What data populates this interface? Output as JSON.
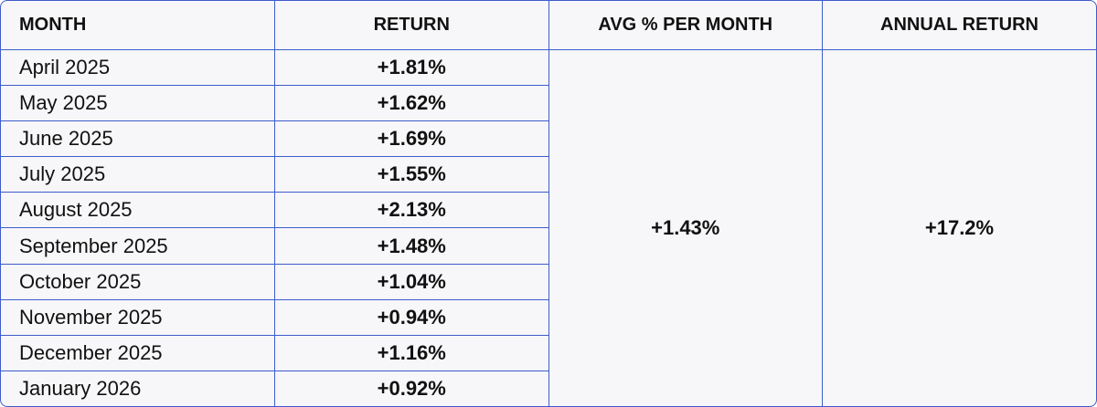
{
  "table": {
    "header": [
      "MONTH",
      "RETURN",
      "AVG % PER MONTH",
      "ANNUAL RETURN"
    ],
    "rows": [
      [
        "April 2025",
        "+1.81%"
      ],
      [
        "May 2025",
        "+1.62%"
      ],
      [
        "June 2025",
        "+1.69%"
      ],
      [
        "July 2025",
        "+1.55%"
      ],
      [
        "August 2025",
        "+2.13%"
      ],
      [
        "September 2025",
        "+1.48%"
      ],
      [
        "October 2025",
        "+1.04%"
      ],
      [
        "November 2025",
        "+0.94%"
      ],
      [
        "December 2025",
        "+1.16%"
      ],
      [
        "January 2026",
        "+0.92%"
      ]
    ],
    "avg_per_month": "+1.43%",
    "annual_return": "+17.2%"
  }
}
